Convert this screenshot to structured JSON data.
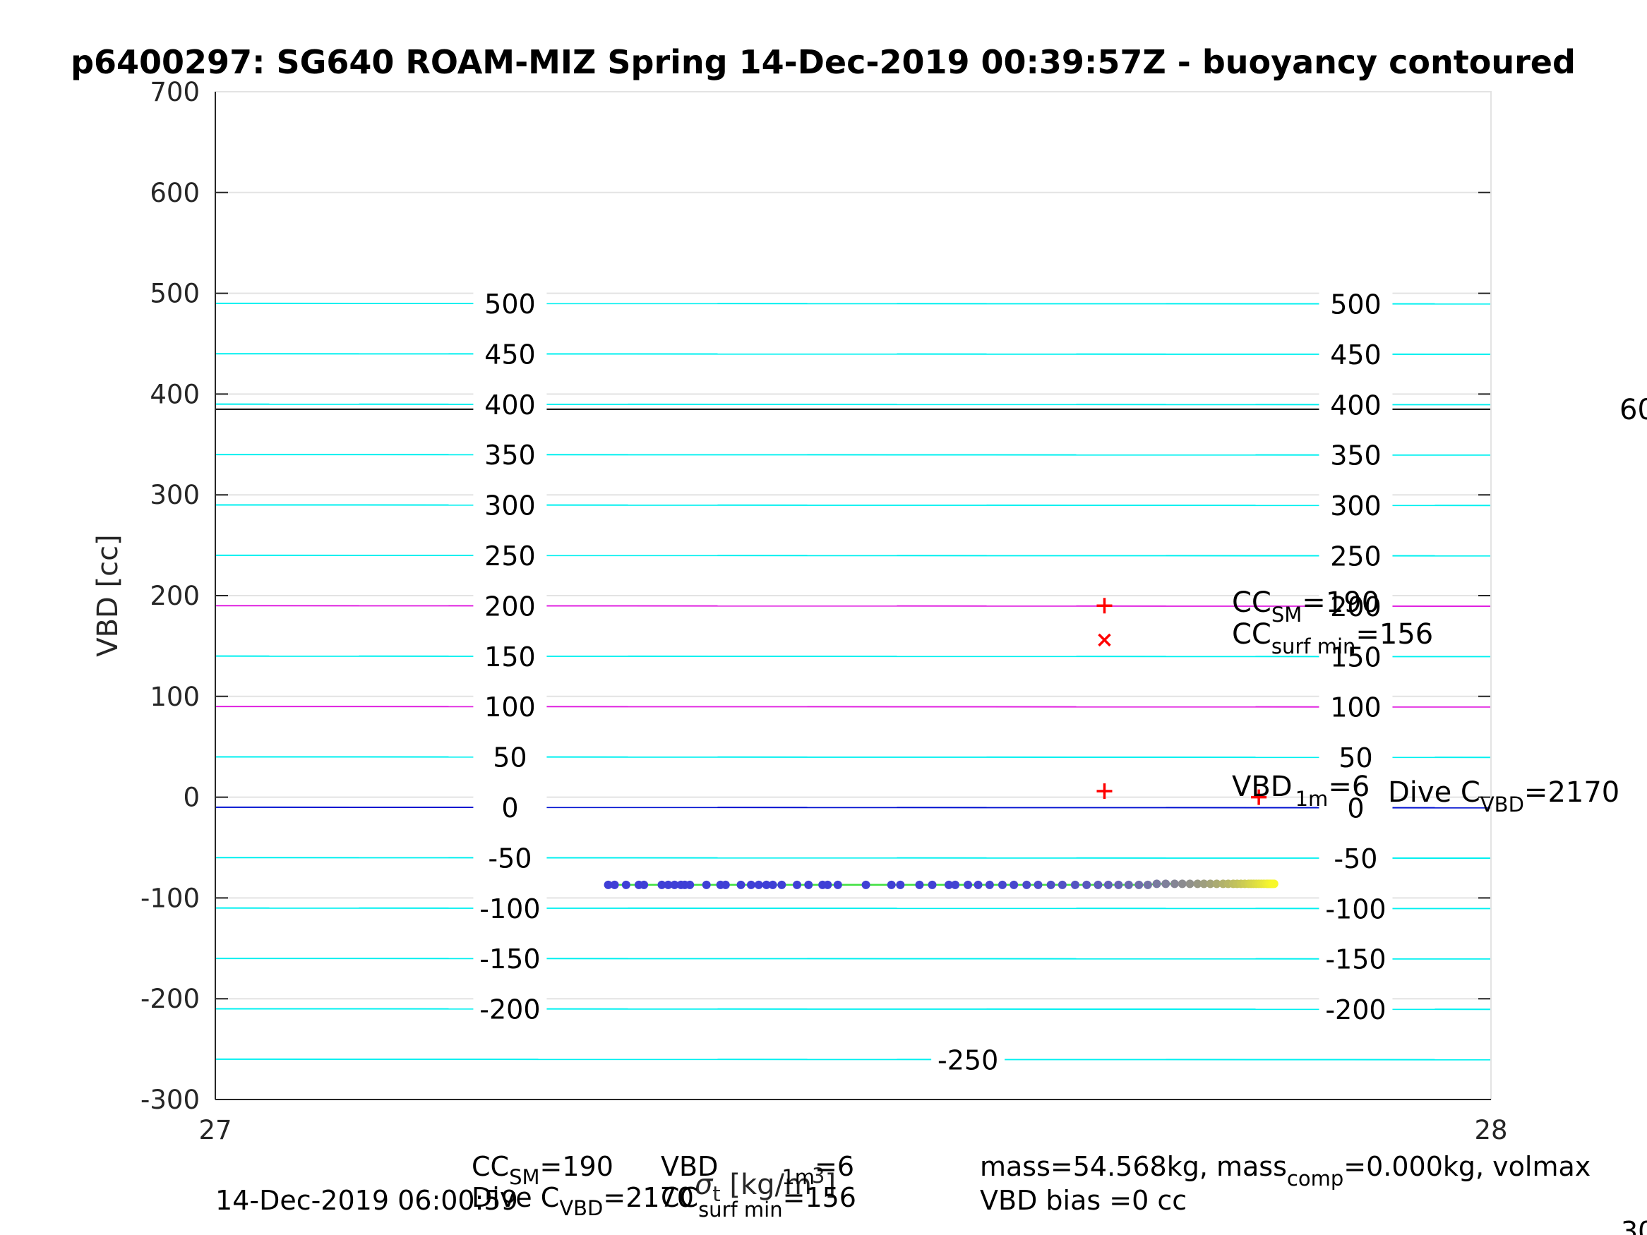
{
  "chart_data": {
    "type": "scatter",
    "title": "p6400297: SG640 ROAM-MIZ Spring 14-Dec-2019 00:39:57Z - buoyancy contoured",
    "xlabel": "σ_t [kg/m³]",
    "xlabel_parts": {
      "base": "σ",
      "sub": "t",
      "unit": " [kg/m",
      "sup": "3",
      "close": "]"
    },
    "ylabel": "VBD [cc]",
    "xlim": [
      27,
      28
    ],
    "ylim": [
      -300,
      700
    ],
    "xticks": [
      "27",
      "28"
    ],
    "yticks": [
      "700",
      "600",
      "500",
      "400",
      "300",
      "200",
      "100",
      "0",
      "-100",
      "-200",
      "-300"
    ],
    "ytick_values": [
      700,
      600,
      500,
      400,
      300,
      200,
      100,
      0,
      -100,
      -200,
      -300
    ],
    "grid": true,
    "contour_slope": -0.51,
    "contours": [
      {
        "level": 500,
        "at_xmin": 490,
        "color": "#00f0f0",
        "labels": [
          "500",
          "500"
        ]
      },
      {
        "level": 450,
        "at_xmin": 440,
        "color": "#00f0f0",
        "labels": [
          "450",
          "450"
        ]
      },
      {
        "level": 400,
        "at_xmin": 390,
        "color": "#00f0f0",
        "labels": [
          "400",
          "400"
        ]
      },
      {
        "level": 350,
        "at_xmin": 340,
        "color": "#00f0f0",
        "labels": [
          "350",
          "350"
        ]
      },
      {
        "level": 300,
        "at_xmin": 290,
        "color": "#00f0f0",
        "labels": [
          "300",
          "300"
        ]
      },
      {
        "level": 250,
        "at_xmin": 240,
        "color": "#00f0f0",
        "labels": [
          "250",
          "250"
        ]
      },
      {
        "level": 200,
        "at_xmin": 190,
        "color": "#e020e0",
        "labels": [
          "200",
          "200"
        ]
      },
      {
        "level": 150,
        "at_xmin": 140,
        "color": "#00f0f0",
        "labels": [
          "150",
          "150"
        ]
      },
      {
        "level": 100,
        "at_xmin": 90,
        "color": "#e020e0",
        "labels": [
          "100",
          "100"
        ]
      },
      {
        "level": 50,
        "at_xmin": 40,
        "color": "#00f0f0",
        "labels": [
          "50",
          "50"
        ]
      },
      {
        "level": 0,
        "at_xmin": -10,
        "color": "#0010d0",
        "labels": [
          "0",
          "0"
        ]
      },
      {
        "level": -50,
        "at_xmin": -60,
        "color": "#00f0f0",
        "labels": [
          "-50",
          "-50"
        ]
      },
      {
        "level": -100,
        "at_xmin": -110,
        "color": "#00f0f0",
        "labels": [
          "-100",
          "-100"
        ]
      },
      {
        "level": -150,
        "at_xmin": -160,
        "color": "#00f0f0",
        "labels": [
          "-150",
          "-150"
        ]
      },
      {
        "level": -200,
        "at_xmin": -210,
        "color": "#00f0f0",
        "labels": [
          "-200",
          "-200"
        ]
      },
      {
        "level": -250,
        "at_xmin": -260,
        "color": "#00f0f0",
        "labels": [
          "-250"
        ]
      }
    ],
    "hline": {
      "y": 385,
      "color": "#000000",
      "label": "60"
    },
    "series": [
      {
        "points": [
          [
            27.308,
            -87
          ],
          [
            27.313,
            -87
          ],
          [
            27.322,
            -87
          ],
          [
            27.332,
            -87
          ],
          [
            27.336,
            -87
          ],
          [
            27.35,
            -87
          ],
          [
            27.355,
            -87
          ],
          [
            27.36,
            -87
          ],
          [
            27.365,
            -87
          ],
          [
            27.368,
            -87
          ],
          [
            27.372,
            -87
          ],
          [
            27.385,
            -87
          ],
          [
            27.396,
            -87
          ],
          [
            27.4,
            -87
          ],
          [
            27.412,
            -87
          ],
          [
            27.42,
            -87
          ],
          [
            27.426,
            -87
          ],
          [
            27.432,
            -87
          ],
          [
            27.437,
            -87
          ],
          [
            27.444,
            -87
          ],
          [
            27.456,
            -87
          ],
          [
            27.465,
            -87
          ],
          [
            27.476,
            -87
          ],
          [
            27.48,
            -87
          ],
          [
            27.488,
            -87
          ],
          [
            27.51,
            -87
          ],
          [
            27.53,
            -87
          ],
          [
            27.537,
            -87
          ],
          [
            27.552,
            -87
          ],
          [
            27.562,
            -87
          ],
          [
            27.575,
            -87
          ],
          [
            27.58,
            -87
          ],
          [
            27.59,
            -87
          ],
          [
            27.598,
            -87
          ],
          [
            27.607,
            -87
          ],
          [
            27.617,
            -87
          ],
          [
            27.626,
            -87
          ],
          [
            27.636,
            -87
          ],
          [
            27.645,
            -87
          ],
          [
            27.655,
            -87
          ],
          [
            27.664,
            -87
          ],
          [
            27.674,
            -87
          ],
          [
            27.683,
            -87
          ],
          [
            27.692,
            -87
          ],
          [
            27.7,
            -87
          ],
          [
            27.708,
            -87
          ],
          [
            27.716,
            -87
          ],
          [
            27.724,
            -87
          ],
          [
            27.731,
            -87
          ],
          [
            27.738,
            -86
          ],
          [
            27.745,
            -86
          ],
          [
            27.752,
            -86
          ],
          [
            27.758,
            -86
          ],
          [
            27.764,
            -86
          ],
          [
            27.77,
            -86
          ],
          [
            27.775,
            -86
          ],
          [
            27.78,
            -86
          ],
          [
            27.785,
            -86
          ],
          [
            27.79,
            -86
          ],
          [
            27.794,
            -86
          ],
          [
            27.798,
            -86
          ],
          [
            27.801,
            -86
          ],
          [
            27.804,
            -86
          ],
          [
            27.807,
            -86
          ],
          [
            27.81,
            -86
          ],
          [
            27.812,
            -86
          ],
          [
            27.814,
            -86
          ],
          [
            27.816,
            -86
          ],
          [
            27.818,
            -86
          ],
          [
            27.82,
            -86
          ],
          [
            27.822,
            -86
          ],
          [
            27.824,
            -86
          ],
          [
            27.825,
            -86
          ],
          [
            27.826,
            -86
          ],
          [
            27.827,
            -86
          ],
          [
            27.828,
            -86
          ],
          [
            27.829,
            -86
          ],
          [
            27.83,
            -86
          ]
        ],
        "color_start": "#3f3fd6",
        "color_end": "#f8f82a",
        "line_color": "#40e040"
      }
    ],
    "markers": [
      {
        "x": 27.697,
        "y": 190,
        "shape": "+",
        "color": "#ff0000"
      },
      {
        "x": 27.697,
        "y": 156,
        "shape": "x",
        "color": "#ff0000"
      },
      {
        "x": 27.697,
        "y": 6,
        "shape": "+",
        "color": "#ff0000"
      },
      {
        "x": 27.818,
        "y": 0,
        "shape": "+",
        "color": "#ff0000"
      }
    ],
    "annotations": [
      {
        "base": "CC",
        "sub": "SM",
        "value": "=190"
      },
      {
        "base": "CC",
        "sub": "surf min",
        "value": "=156"
      },
      {
        "base": "VBD",
        "sub": "1m",
        "value": "=6"
      },
      {
        "base": "Dive C",
        "sub": "VBD",
        "value": "=2170"
      }
    ],
    "footer": {
      "date": "14-Dec-2019 06:00:59",
      "cc_sm": {
        "base": "CC",
        "sub": "SM",
        "value": "=190"
      },
      "dive_c": {
        "base": "Dive C",
        "sub": "VBD",
        "value": "=2170"
      },
      "vbd_1m": {
        "base": "VBD",
        "sub": "1m",
        "value": "=6"
      },
      "cc_surf": {
        "base": "CC",
        "sub": "surf min",
        "value": "=156"
      },
      "mass": {
        "p1": "mass=54.568kg, mass",
        "sub": "comp",
        "p2": "=0.000kg, volmax"
      },
      "vbd_bias": "VBD bias =0 cc",
      "edge": "30"
    }
  }
}
